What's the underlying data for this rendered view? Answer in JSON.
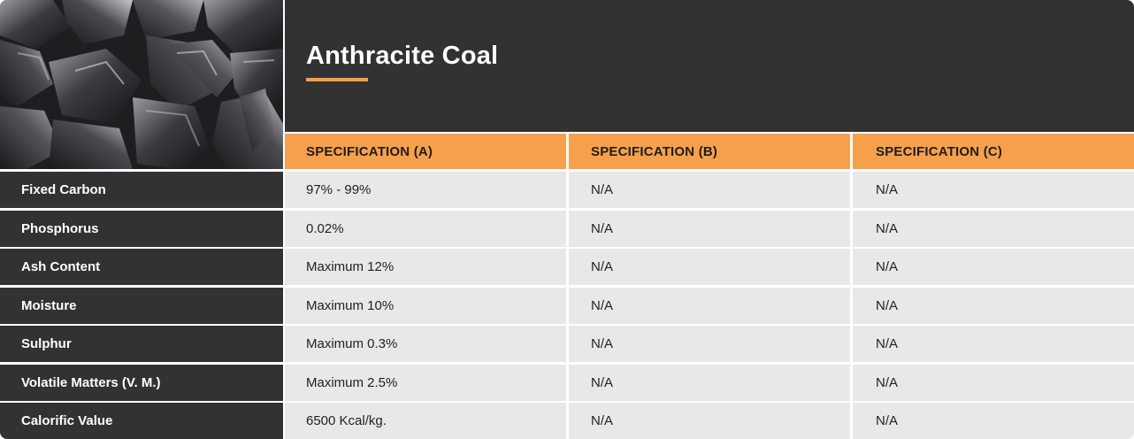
{
  "product": {
    "title": "Anthracite Coal",
    "accent_color": "#f7a04b",
    "header_color": "#323232",
    "image": "anthracite-coal-photo"
  },
  "columns": [
    "SPECIFICATION (A)",
    "SPECIFICATION (B)",
    "SPECIFICATION (C)"
  ],
  "rows": [
    {
      "label": "Fixed Carbon",
      "a": "97% - 99%",
      "b": "N/A",
      "c": "N/A"
    },
    {
      "label": "Phosphorus",
      "a": "0.02%",
      "b": "N/A",
      "c": "N/A"
    },
    {
      "label": "Ash Content",
      "a": "Maximum 12%",
      "b": "N/A",
      "c": "N/A"
    },
    {
      "label": "Moisture",
      "a": "Maximum 10%",
      "b": "N/A",
      "c": "N/A"
    },
    {
      "label": "Sulphur",
      "a": "Maximum 0.3%",
      "b": "N/A",
      "c": "N/A"
    },
    {
      "label": "Volatile Matters (V. M.)",
      "a": "Maximum 2.5%",
      "b": "N/A",
      "c": "N/A"
    },
    {
      "label": "Calorific Value",
      "a": "6500 Kcal/kg.",
      "b": "N/A",
      "c": "N/A"
    }
  ]
}
